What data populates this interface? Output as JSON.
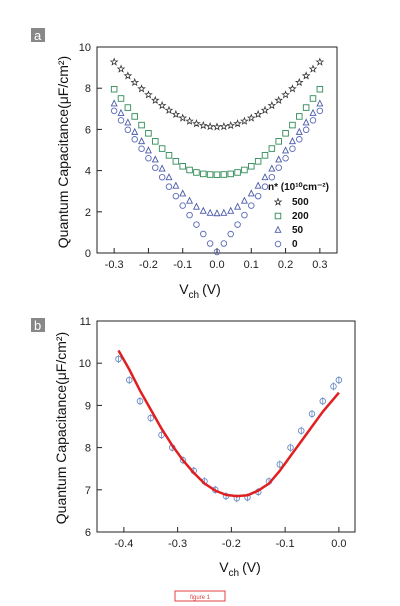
{
  "figure_caption": "figure 1",
  "chart_data": [
    {
      "panel": "a",
      "type": "scatter",
      "xlabel": "V",
      "xlabel_sub": "ch",
      "xlabel_unit": "(V)",
      "ylabel": "Quantum Capacitance(μF/cm²)",
      "xlim": [
        -0.35,
        0.35
      ],
      "ylim": [
        0,
        10
      ],
      "xticks": [
        "-0.3",
        "-0.2",
        "-0.1",
        "0.0",
        "0.1",
        "0.2",
        "0.3"
      ],
      "yticks": [
        "0",
        "2",
        "4",
        "6",
        "8",
        "10"
      ],
      "legend_title": "n* (10¹⁰cm⁻²)",
      "legend_position": "right",
      "x": [
        -0.3,
        -0.28,
        -0.26,
        -0.24,
        -0.22,
        -0.2,
        -0.18,
        -0.16,
        -0.14,
        -0.12,
        -0.1,
        -0.08,
        -0.06,
        -0.04,
        -0.02,
        0.0,
        0.02,
        0.04,
        0.06,
        0.08,
        0.1,
        0.12,
        0.14,
        0.16,
        0.18,
        0.2,
        0.22,
        0.24,
        0.26,
        0.28,
        0.3
      ],
      "series": [
        {
          "name": "500",
          "marker": "star",
          "color": "#333333",
          "values": [
            9.27,
            8.93,
            8.6,
            8.28,
            7.97,
            7.68,
            7.41,
            7.16,
            6.93,
            6.73,
            6.55,
            6.4,
            6.28,
            6.19,
            6.14,
            6.12,
            6.14,
            6.19,
            6.28,
            6.4,
            6.55,
            6.73,
            6.93,
            7.16,
            7.41,
            7.68,
            7.97,
            8.28,
            8.6,
            8.93,
            9.27
          ]
        },
        {
          "name": "200",
          "marker": "square",
          "color": "#2e8b57",
          "values": [
            7.95,
            7.5,
            7.06,
            6.63,
            6.21,
            5.81,
            5.42,
            5.07,
            4.74,
            4.45,
            4.21,
            4.03,
            3.91,
            3.84,
            3.81,
            3.8,
            3.81,
            3.84,
            3.91,
            4.03,
            4.21,
            4.45,
            4.74,
            5.07,
            5.42,
            5.81,
            6.21,
            6.63,
            7.06,
            7.5,
            7.95
          ]
        },
        {
          "name": "50",
          "marker": "triangle",
          "color": "#4a5aa8",
          "values": [
            7.25,
            6.79,
            6.33,
            5.87,
            5.42,
            4.97,
            4.53,
            4.09,
            3.67,
            3.26,
            2.88,
            2.53,
            2.24,
            2.04,
            1.94,
            1.92,
            1.94,
            2.04,
            2.24,
            2.53,
            2.88,
            3.26,
            3.67,
            4.09,
            4.53,
            4.97,
            5.42,
            5.87,
            6.33,
            6.79,
            7.25
          ]
        },
        {
          "name": "0",
          "marker": "circle",
          "color": "#5a6ab8",
          "values": [
            6.9,
            6.44,
            5.98,
            5.52,
            5.06,
            4.6,
            4.14,
            3.68,
            3.22,
            2.76,
            2.3,
            1.84,
            1.38,
            0.92,
            0.46,
            0.05,
            0.46,
            0.92,
            1.38,
            1.84,
            2.3,
            2.76,
            3.22,
            3.68,
            4.14,
            4.6,
            5.06,
            5.52,
            5.98,
            6.44,
            6.9
          ]
        }
      ]
    },
    {
      "panel": "b",
      "type": "scatter",
      "xlabel": "V",
      "xlabel_sub": "ch",
      "xlabel_unit": "(V)",
      "ylabel": "Quantum Capacitance(μF/cm²)",
      "xlim": [
        -0.45,
        0.03
      ],
      "ylim": [
        6,
        11
      ],
      "xticks": [
        "-0.4",
        "-0.3",
        "-0.2",
        "-0.1",
        "0.0"
      ],
      "yticks": [
        "6",
        "7",
        "8",
        "9",
        "10",
        "11"
      ],
      "series": [
        {
          "name": "",
          "marker": "circle",
          "color": "#6a8cc8",
          "x": [
            -0.41,
            -0.39,
            -0.37,
            -0.35,
            -0.33,
            -0.31,
            -0.29,
            -0.27,
            -0.25,
            -0.23,
            -0.21,
            -0.19,
            -0.17,
            -0.15,
            -0.13,
            -0.11,
            -0.09,
            -0.07,
            -0.05,
            -0.03,
            -0.01,
            0.0
          ],
          "values": [
            10.1,
            9.6,
            9.1,
            8.7,
            8.3,
            8.0,
            7.7,
            7.45,
            7.2,
            7.0,
            6.85,
            6.8,
            6.82,
            6.95,
            7.2,
            7.6,
            8.0,
            8.4,
            8.8,
            9.1,
            9.45,
            9.6
          ]
        },
        {
          "name": "",
          "type": "line",
          "color": "#e02020",
          "x": [
            -0.41,
            -0.39,
            -0.37,
            -0.35,
            -0.33,
            -0.31,
            -0.29,
            -0.27,
            -0.25,
            -0.23,
            -0.21,
            -0.19,
            -0.17,
            -0.15,
            -0.13,
            -0.11,
            -0.09,
            -0.07,
            -0.05,
            -0.03,
            -0.01,
            0.0
          ],
          "values": [
            10.3,
            9.85,
            9.35,
            8.9,
            8.45,
            8.05,
            7.7,
            7.4,
            7.15,
            6.98,
            6.88,
            6.85,
            6.87,
            6.98,
            7.15,
            7.45,
            7.8,
            8.15,
            8.5,
            8.85,
            9.15,
            9.3
          ]
        }
      ]
    }
  ]
}
